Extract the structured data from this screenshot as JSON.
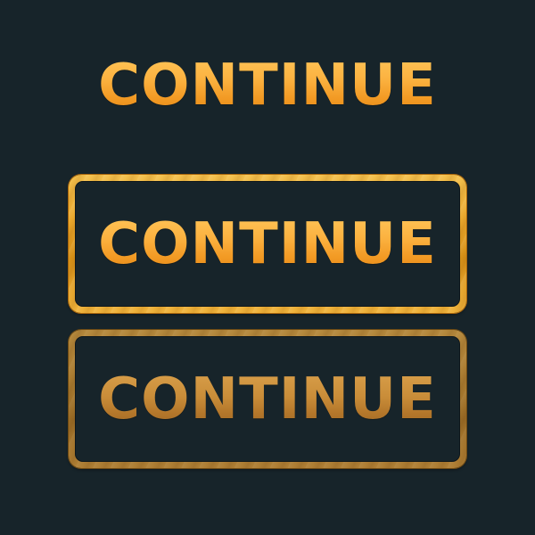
{
  "title": {
    "text": "CONTINUE"
  },
  "buttons": {
    "normal": {
      "label": "CONTINUE",
      "state": "normal"
    },
    "dimmed": {
      "label": "CONTINUE",
      "state": "disabled"
    }
  },
  "colors": {
    "background": "#17242a",
    "gold_light": "#ffc457",
    "gold_dark": "#e68a19",
    "gold_dim": "#b3762a",
    "frame_gold": "#e9a62a",
    "frame_dim": "#a97b30"
  }
}
